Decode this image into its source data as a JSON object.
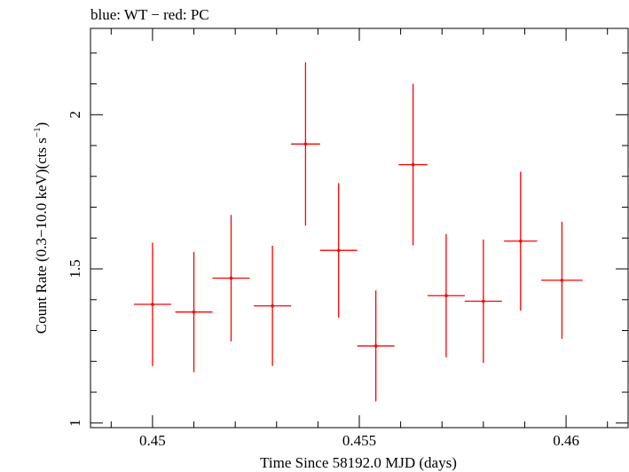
{
  "chart_data": {
    "type": "scatter",
    "title": "blue: WT − red: PC",
    "xlabel": "Time Since 58192.0 MJD (days)",
    "ylabel_main": "Count Rate (0.3−10.0 keV)(cts s",
    "ylabel_sup": "−1",
    "ylabel_close": ")",
    "xlim": [
      0.4485,
      0.4615
    ],
    "ylim": [
      0.985,
      2.28
    ],
    "xticks": [
      0.45,
      0.455,
      0.46
    ],
    "xtick_labels": [
      "0.45",
      "0.455",
      "0.46"
    ],
    "yticks": [
      1,
      1.5,
      2
    ],
    "ytick_labels": [
      "1",
      "1.5",
      "2"
    ],
    "series": [
      {
        "name": "PC",
        "color": "#ff0000",
        "points": [
          {
            "x": 0.45,
            "xerr": 0.00045,
            "y": 1.385,
            "yerr": 0.2
          },
          {
            "x": 0.451,
            "xerr": 0.00045,
            "y": 1.36,
            "yerr": 0.195
          },
          {
            "x": 0.4519,
            "xerr": 0.00045,
            "y": 1.47,
            "yerr": 0.205
          },
          {
            "x": 0.4529,
            "xerr": 0.00045,
            "y": 1.38,
            "yerr": 0.195
          },
          {
            "x": 0.4537,
            "xerr": 0.00035,
            "y": 1.905,
            "yerr": 0.265
          },
          {
            "x": 0.4545,
            "xerr": 0.00045,
            "y": 1.56,
            "yerr": 0.218
          },
          {
            "x": 0.4554,
            "xerr": 0.00045,
            "y": 1.25,
            "yerr": 0.18
          },
          {
            "x": 0.4563,
            "xerr": 0.00035,
            "y": 1.838,
            "yerr": 0.262
          },
          {
            "x": 0.4571,
            "xerr": 0.00045,
            "y": 1.413,
            "yerr": 0.2
          },
          {
            "x": 0.458,
            "xerr": 0.00045,
            "y": 1.395,
            "yerr": 0.2
          },
          {
            "x": 0.4589,
            "xerr": 0.0004,
            "y": 1.59,
            "yerr": 0.225
          },
          {
            "x": 0.4599,
            "xerr": 0.0005,
            "y": 1.463,
            "yerr": 0.19
          }
        ]
      }
    ]
  }
}
